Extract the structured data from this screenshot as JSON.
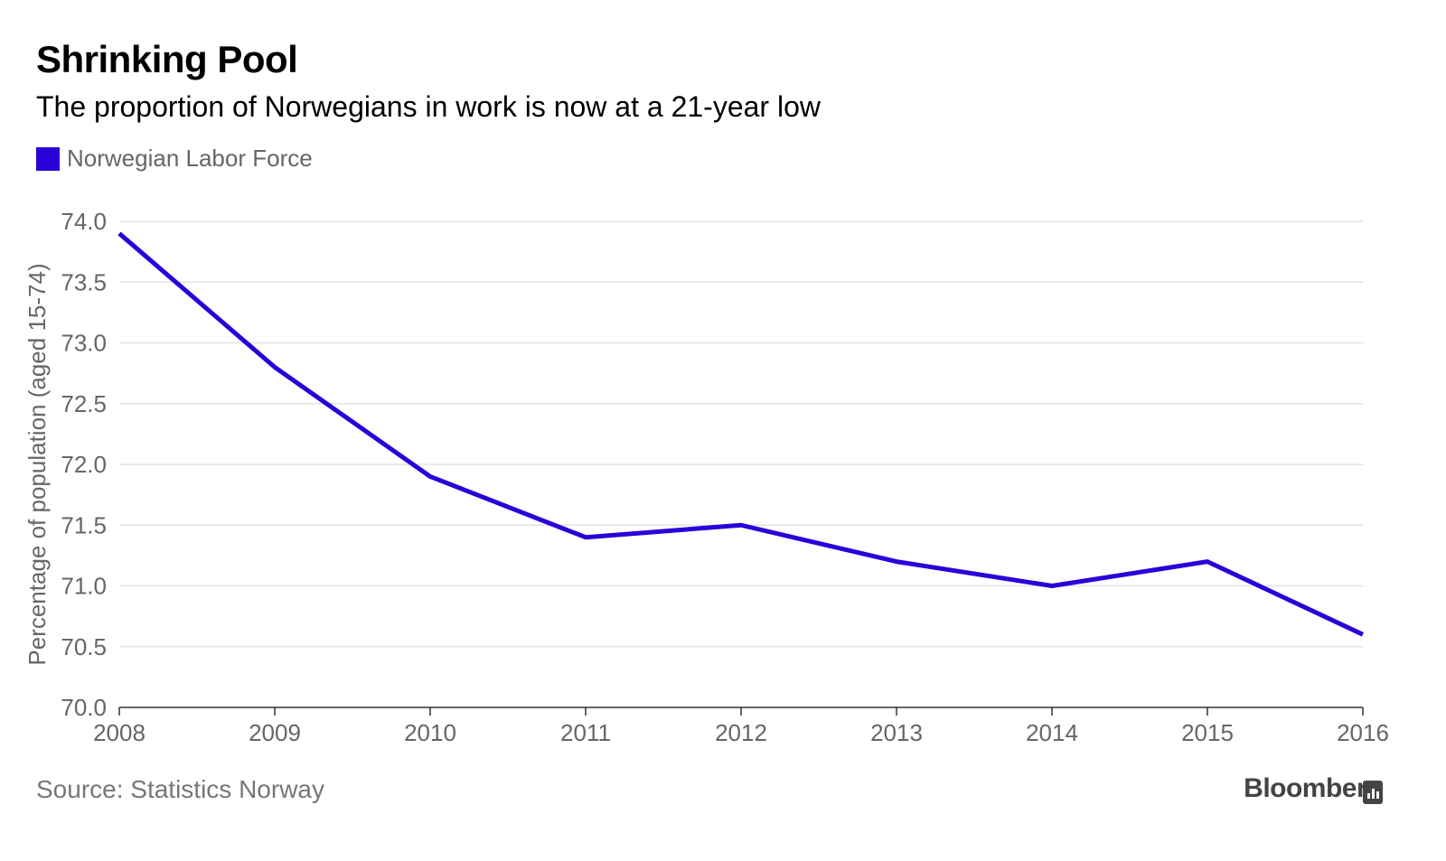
{
  "header": {
    "title": "Shrinking Pool",
    "subtitle": "The proportion of Norwegians in work is now at a 21-year low"
  },
  "legend": {
    "label": "Norwegian Labor Force",
    "color": "#2a00d9"
  },
  "footer": {
    "source": "Source: Statistics Norway",
    "brand": "Bloomberg",
    "brand_icon": "bloomberg-chart-icon"
  },
  "chart_data": {
    "type": "line",
    "x": [
      2008,
      2009,
      2010,
      2011,
      2012,
      2013,
      2014,
      2015,
      2016
    ],
    "series": [
      {
        "name": "Norwegian Labor Force",
        "values": [
          73.9,
          72.8,
          71.9,
          71.4,
          71.5,
          71.2,
          71.0,
          71.2,
          70.6
        ],
        "color": "#2a00d9"
      }
    ],
    "ylabel": "Percentage of population (aged 15-74)",
    "xlabel": "",
    "ylim": [
      70.0,
      74.0
    ],
    "xlim": [
      2008,
      2016
    ],
    "yticks": [
      "70.0",
      "70.5",
      "71.0",
      "71.5",
      "72.0",
      "72.5",
      "73.0",
      "73.5",
      "74.0"
    ],
    "xticks": [
      "2008",
      "2009",
      "2010",
      "2011",
      "2012",
      "2013",
      "2014",
      "2015",
      "2016"
    ],
    "grid": true
  }
}
